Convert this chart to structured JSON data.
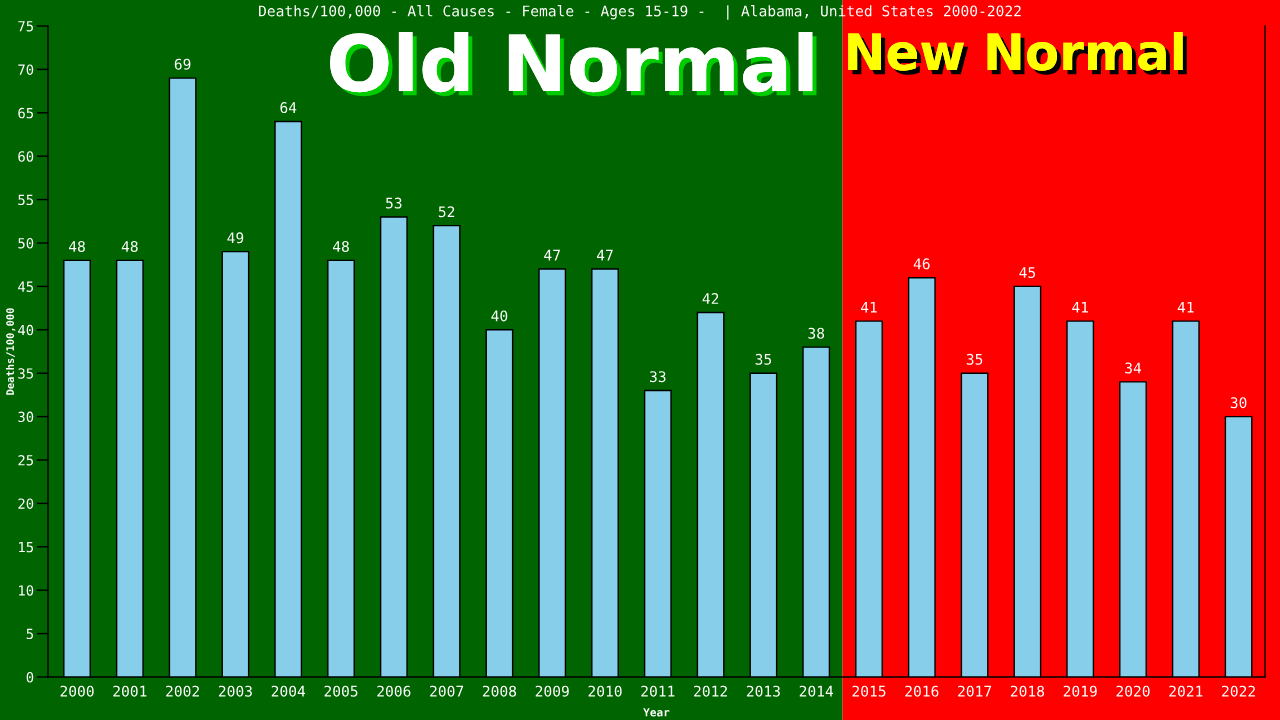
{
  "chart_data": {
    "type": "bar",
    "title": "Deaths/100,000 - All Causes - Female - Ages 15-19 -  | Alabama, United States 2000-2022",
    "xlabel": "Year",
    "ylabel": "Deaths/100,000",
    "categories": [
      "2000",
      "2001",
      "2002",
      "2003",
      "2004",
      "2005",
      "2006",
      "2007",
      "2008",
      "2009",
      "2010",
      "2011",
      "2012",
      "2013",
      "2014",
      "2015",
      "2016",
      "2017",
      "2018",
      "2019",
      "2020",
      "2021",
      "2022"
    ],
    "values": [
      48,
      48,
      69,
      49,
      64,
      48,
      53,
      52,
      40,
      47,
      47,
      33,
      42,
      35,
      38,
      41,
      46,
      35,
      45,
      41,
      34,
      41,
      30
    ],
    "color": "#87ceeb",
    "ylim": [
      0,
      75
    ],
    "yticks": [
      0,
      5,
      10,
      15,
      20,
      25,
      30,
      35,
      40,
      45,
      50,
      55,
      60,
      65,
      70,
      75
    ],
    "data_labels": true,
    "bands": [
      {
        "axis": "x",
        "from": "2000",
        "to": "2014",
        "label": "Old Normal",
        "color": "#006400"
      },
      {
        "axis": "x",
        "from": "2015",
        "to": "2022",
        "label": "New Normal",
        "color": "#ff0000"
      }
    ]
  }
}
